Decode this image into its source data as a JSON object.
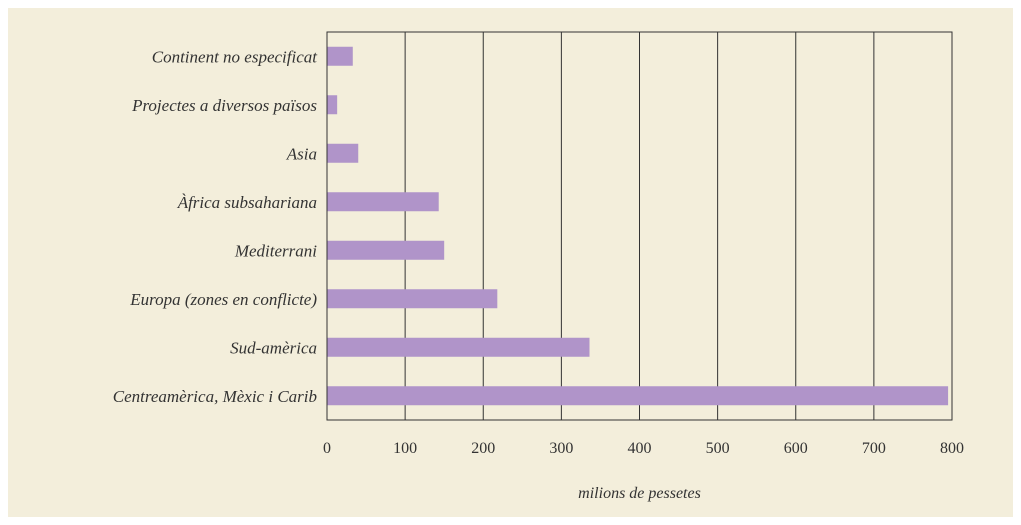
{
  "chart_data": {
    "type": "bar",
    "orientation": "horizontal",
    "categories": [
      "Continent no especificat",
      "Projectes a diversos països",
      "Asia",
      "Àfrica subsahariana",
      "Mediterrani",
      "Europa (zones en conflicte)",
      "Sud-amèrica",
      "Centreamèrica, Mèxic i Carib"
    ],
    "values": [
      33,
      13,
      40,
      143,
      150,
      218,
      336,
      795
    ],
    "xlabel": "milions de pessetes",
    "ylabel": "",
    "xlim": [
      0,
      800
    ],
    "xticks": [
      0,
      100,
      200,
      300,
      400,
      500,
      600,
      700,
      800
    ],
    "grid": "vertical",
    "legend": "none"
  },
  "colors": {
    "bar": "#b094c9",
    "panel_background": "#f3eedb",
    "gridline": "#333333",
    "text": "#333333"
  }
}
